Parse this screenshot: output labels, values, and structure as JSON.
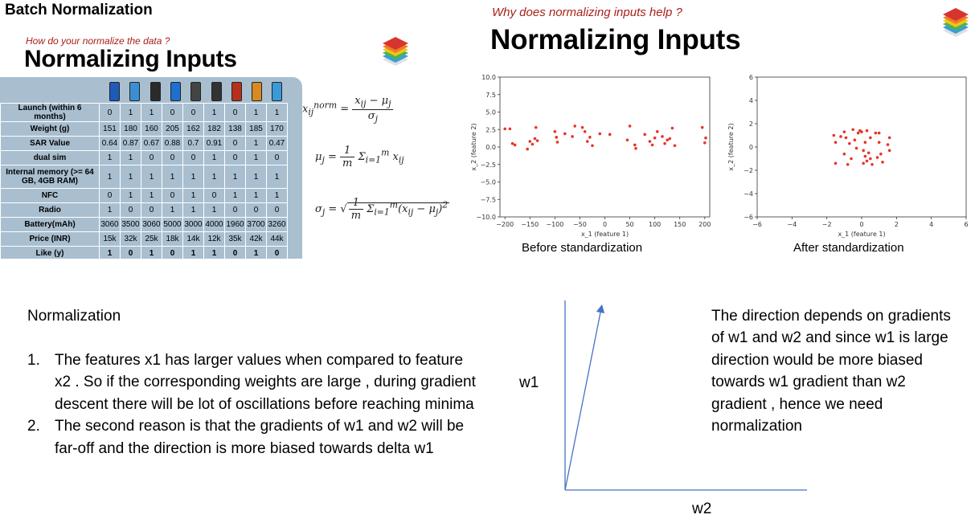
{
  "slide_title": "Batch Normalization",
  "left_panel": {
    "subtitle": "How do your normalize the data ?",
    "heading": "Normalizing Inputs",
    "phone_colors": [
      "#1e5ab8",
      "#3a8fd4",
      "#2b2b2b",
      "#1f6fd0",
      "#444",
      "#333",
      "#b8301a",
      "#d88a20",
      "#3a9ad8"
    ],
    "table_rows": [
      {
        "label": "Launch (within 6 months)",
        "values": [
          "0",
          "1",
          "1",
          "0",
          "0",
          "1",
          "0",
          "1",
          "1"
        ]
      },
      {
        "label": "Weight (g)",
        "values": [
          "151",
          "180",
          "160",
          "205",
          "162",
          "182",
          "138",
          "185",
          "170"
        ]
      },
      {
        "label": "SAR Value",
        "values": [
          "0.64",
          "0.87",
          "0.67",
          "0.88",
          "0.7",
          "0.91",
          "0",
          "1",
          "0.47"
        ]
      },
      {
        "label": "dual sim",
        "values": [
          "1",
          "1",
          "0",
          "0",
          "0",
          "1",
          "0",
          "1",
          "0"
        ]
      },
      {
        "label": "Internal memory (>= 64 GB, 4GB RAM)",
        "values": [
          "1",
          "1",
          "1",
          "1",
          "1",
          "1",
          "1",
          "1",
          "1"
        ]
      },
      {
        "label": "NFC",
        "values": [
          "0",
          "1",
          "1",
          "0",
          "1",
          "0",
          "1",
          "1",
          "1"
        ]
      },
      {
        "label": "Radio",
        "values": [
          "1",
          "0",
          "0",
          "1",
          "1",
          "1",
          "0",
          "0",
          "0"
        ]
      },
      {
        "label": "Battery(mAh)",
        "values": [
          "3060",
          "3500",
          "3060",
          "5000",
          "3000",
          "4000",
          "1960",
          "3700",
          "3260"
        ]
      },
      {
        "label": "Price (INR)",
        "values": [
          "15k",
          "32k",
          "25k",
          "18k",
          "14k",
          "12k",
          "35k",
          "42k",
          "44k"
        ]
      },
      {
        "label": "Like (y)",
        "values": [
          "1",
          "0",
          "1",
          "0",
          "1",
          "1",
          "0",
          "1",
          "0"
        ]
      }
    ]
  },
  "right_panel": {
    "subtitle": "Why does normalizing inputs help ?",
    "heading": "Normalizing Inputs",
    "caption_before": "Before standardization",
    "caption_after": "After standardization"
  },
  "chart_data": [
    {
      "type": "scatter",
      "title": "",
      "xlabel": "x_1 (feature 1)",
      "ylabel": "x_2 (feature 2)",
      "xlim": [
        -210,
        210
      ],
      "ylim": [
        -10,
        10
      ],
      "xticks": [
        -200,
        -150,
        -100,
        -50,
        0,
        50,
        100,
        150,
        200
      ],
      "yticks": [
        -10.0,
        -7.5,
        -5.0,
        -2.5,
        0.0,
        2.5,
        5.0,
        7.5,
        10.0
      ],
      "ytick_labels": [
        "−10.0",
        "−7.5",
        "−5.0",
        "−2.5",
        "0.0",
        "2.5",
        "5.0",
        "7.5",
        "10.0"
      ],
      "xtick_labels": [
        "−200",
        "−150",
        "−100",
        "−50",
        "0",
        "50",
        "100",
        "150",
        "200"
      ],
      "points": [
        [
          -200,
          2.6
        ],
        [
          -190,
          2.6
        ],
        [
          -185,
          0.5
        ],
        [
          -180,
          0.3
        ],
        [
          -155,
          -0.3
        ],
        [
          -150,
          0.8
        ],
        [
          -145,
          0.4
        ],
        [
          -140,
          1.2
        ],
        [
          -138,
          2.8
        ],
        [
          -135,
          0.9
        ],
        [
          -100,
          2.2
        ],
        [
          -97,
          1.4
        ],
        [
          -95,
          0.7
        ],
        [
          -80,
          1.9
        ],
        [
          -65,
          1.5
        ],
        [
          -60,
          3.0
        ],
        [
          -45,
          2.8
        ],
        [
          -40,
          2.2
        ],
        [
          -35,
          0.8
        ],
        [
          -30,
          1.4
        ],
        [
          -25,
          0.2
        ],
        [
          -10,
          1.9
        ],
        [
          10,
          1.8
        ],
        [
          45,
          1.0
        ],
        [
          50,
          3.0
        ],
        [
          60,
          0.3
        ],
        [
          62,
          -0.2
        ],
        [
          80,
          1.8
        ],
        [
          90,
          0.8
        ],
        [
          95,
          0.3
        ],
        [
          100,
          1.3
        ],
        [
          105,
          2.2
        ],
        [
          115,
          1.5
        ],
        [
          120,
          0.5
        ],
        [
          125,
          1.0
        ],
        [
          130,
          1.2
        ],
        [
          135,
          2.7
        ],
        [
          140,
          0.2
        ],
        [
          195,
          2.8
        ],
        [
          200,
          0.6
        ],
        [
          202,
          1.3
        ]
      ],
      "color": "#e8332a",
      "grid": false
    },
    {
      "type": "scatter",
      "title": "",
      "xlabel": "x_1 (feature 1)",
      "ylabel": "x_2 (feature 2)",
      "xlim": [
        -6,
        6
      ],
      "ylim": [
        -6,
        6
      ],
      "xticks": [
        -6,
        -4,
        -2,
        0,
        2,
        4,
        6
      ],
      "yticks": [
        -6,
        -4,
        -2,
        0,
        2,
        4,
        6
      ],
      "xtick_labels": [
        "−6",
        "−4",
        "−2",
        "0",
        "2",
        "4",
        "6"
      ],
      "ytick_labels": [
        "−6",
        "−4",
        "−2",
        "0",
        "2",
        "4",
        "6"
      ],
      "points": [
        [
          -1.6,
          1.0
        ],
        [
          -1.5,
          0.4
        ],
        [
          -1.5,
          -1.4
        ],
        [
          -1.2,
          0.9
        ],
        [
          -1.0,
          -0.6
        ],
        [
          -1.0,
          1.3
        ],
        [
          -0.8,
          -1.5
        ],
        [
          -0.7,
          0.3
        ],
        [
          -0.6,
          -1.0
        ],
        [
          -0.5,
          1.5
        ],
        [
          -0.4,
          0.6
        ],
        [
          -0.3,
          -0.1
        ],
        [
          -0.2,
          1.2
        ],
        [
          -0.1,
          1.4
        ],
        [
          0.0,
          1.3
        ],
        [
          0.1,
          -1.4
        ],
        [
          0.1,
          -0.3
        ],
        [
          0.2,
          -0.8
        ],
        [
          0.3,
          1.4
        ],
        [
          0.3,
          -1.2
        ],
        [
          0.4,
          -0.5
        ],
        [
          0.5,
          0.8
        ],
        [
          0.5,
          -1.0
        ],
        [
          0.6,
          -1.5
        ],
        [
          0.8,
          1.2
        ],
        [
          0.9,
          -0.9
        ],
        [
          1.0,
          0.4
        ],
        [
          1.0,
          1.2
        ],
        [
          1.1,
          -0.6
        ],
        [
          1.2,
          -1.3
        ],
        [
          1.5,
          0.2
        ],
        [
          1.6,
          0.8
        ],
        [
          1.6,
          -0.3
        ],
        [
          -0.9,
          0.8
        ],
        [
          0.2,
          0.4
        ]
      ],
      "color": "#e8332a",
      "grid": false
    }
  ],
  "bottom": {
    "normalization_heading": "Normalization",
    "reasons": [
      {
        "num": "1.",
        "text": "The features x1 has larger values when compared to feature x2 .  So if the corresponding weights are large , during gradient descent there will be lot of oscillations before reaching minima"
      },
      {
        "num": "2.",
        "text": "The second reason is that the gradients of w1 and w2 will be far-off and the direction is more biased towards delta w1"
      }
    ],
    "w1_label": "w1",
    "w2_label": "w2",
    "direction_text": "The direction depends on gradients of w1 and w2 and since w1 is large direction would be more biased towards w1 gradient than w2 gradient , hence we need normalization"
  }
}
